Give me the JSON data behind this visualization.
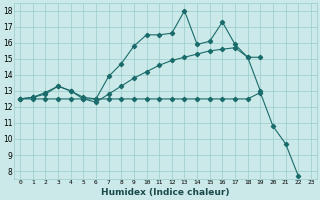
{
  "xlabel": "Humidex (Indice chaleur)",
  "bg_color": "#cce9e9",
  "grid_color": "#99cccc",
  "line_color": "#1a6b6b",
  "xlim": [
    -0.5,
    23.5
  ],
  "ylim": [
    7.5,
    18.5
  ],
  "xticks": [
    0,
    1,
    2,
    3,
    4,
    5,
    6,
    7,
    8,
    9,
    10,
    11,
    12,
    13,
    14,
    15,
    16,
    17,
    18,
    19,
    20,
    21,
    22,
    23
  ],
  "yticks": [
    8,
    9,
    10,
    11,
    12,
    13,
    14,
    15,
    16,
    17,
    18
  ],
  "line1_x": [
    0,
    1,
    2,
    3,
    4,
    5,
    6,
    7,
    8,
    9,
    10,
    11,
    12,
    13,
    14,
    15,
    16,
    17,
    18,
    19
  ],
  "line1_y": [
    12.5,
    12.6,
    12.9,
    13.3,
    13.0,
    12.6,
    12.5,
    13.9,
    14.7,
    15.8,
    16.5,
    16.5,
    16.6,
    18.0,
    15.9,
    16.1,
    17.3,
    15.9,
    15.1,
    13.0
  ],
  "line2_x": [
    0,
    1,
    2,
    3,
    4,
    5,
    6,
    7,
    8,
    9,
    10,
    11,
    12,
    13,
    14,
    15,
    16,
    17,
    18,
    19
  ],
  "line2_y": [
    12.5,
    12.6,
    12.8,
    13.3,
    13.0,
    12.5,
    12.3,
    12.8,
    13.3,
    13.8,
    14.2,
    14.6,
    14.9,
    15.1,
    15.3,
    15.5,
    15.6,
    15.7,
    15.1,
    15.1
  ],
  "line3_x": [
    0,
    1,
    2,
    3,
    4,
    5,
    6,
    7,
    8,
    9,
    10,
    11,
    12,
    13,
    14,
    15,
    16,
    17,
    18,
    19,
    20,
    21,
    22
  ],
  "line3_y": [
    12.5,
    12.5,
    12.5,
    12.5,
    12.5,
    12.5,
    12.5,
    12.5,
    12.5,
    12.5,
    12.5,
    12.5,
    12.5,
    12.5,
    12.5,
    12.5,
    12.5,
    12.5,
    12.5,
    12.9,
    10.8,
    9.7,
    7.7
  ],
  "marker": "D",
  "marker_size": 2.2,
  "lw": 0.8
}
